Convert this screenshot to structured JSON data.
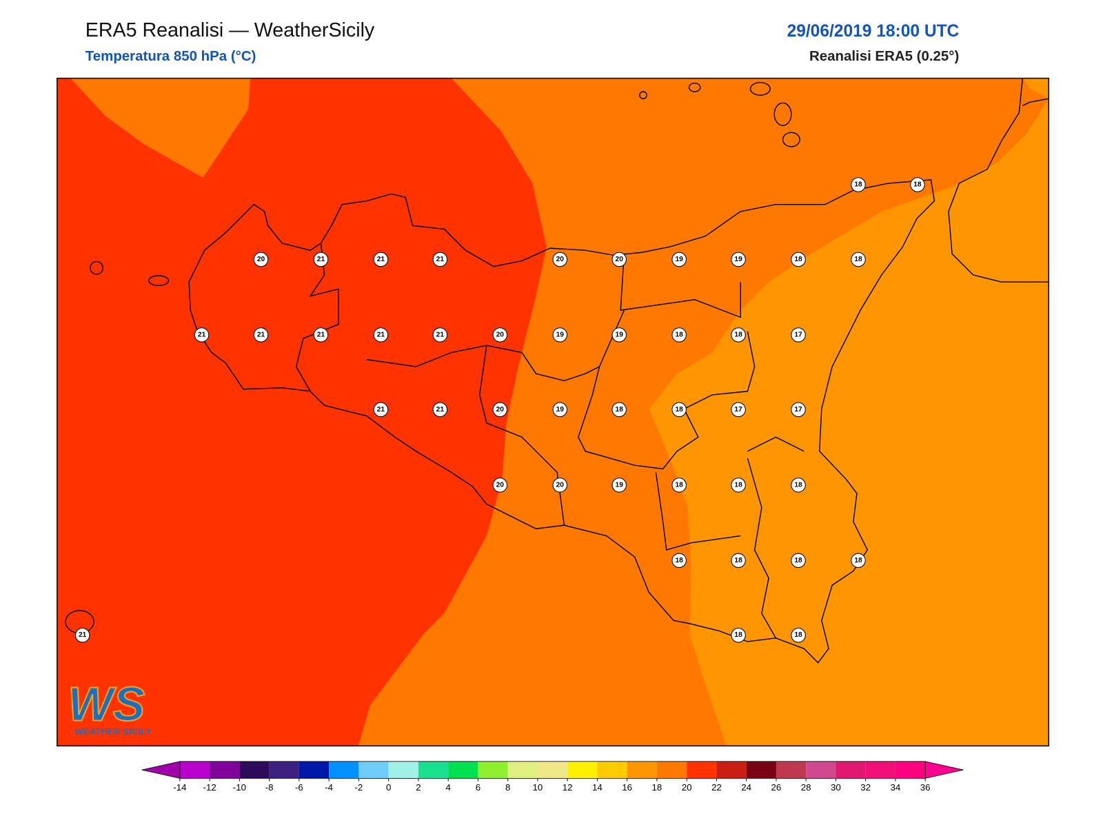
{
  "header": {
    "title": "ERA5 Reanalisi — WeatherSicily",
    "subtitle": "Temperatura 850 hPa (°C)",
    "datetime": "29/06/2019 18:00 UTC",
    "source": "Reanalisi ERA5 (0.25°)"
  },
  "stations": [
    18,
    18,
    20,
    21,
    21,
    21,
    20,
    20,
    19,
    19,
    18,
    18,
    21,
    21,
    21,
    21,
    21,
    20,
    19,
    19,
    18,
    18,
    17,
    21,
    21,
    20,
    19,
    18,
    18,
    17,
    17,
    20,
    20,
    19,
    18,
    18,
    18,
    18,
    18,
    18,
    18,
    21,
    18,
    18
  ],
  "colorbar": {
    "ticks": [
      -14,
      -12,
      -10,
      -8,
      -6,
      -4,
      -2,
      0,
      2,
      4,
      6,
      8,
      10,
      12,
      14,
      16,
      18,
      20,
      22,
      24,
      26,
      28,
      30,
      32,
      34,
      36
    ],
    "colors": [
      "#b800cc",
      "#80009c",
      "#2e0a5a",
      "#3c2080",
      "#0018a8",
      "#0090ff",
      "#70ccf8",
      "#a0f0e8",
      "#18e090",
      "#00e050",
      "#90f030",
      "#e0f080",
      "#f0e888",
      "#fff000",
      "#ffcc00",
      "#ff9500",
      "#ff7800",
      "#ff3300",
      "#c81e14",
      "#780010",
      "#c03850",
      "#d04890",
      "#e01870",
      "#f01078",
      "#ff0080"
    ],
    "under": "#a000a8",
    "over": "#ff0090"
  },
  "logo": {
    "mark": "WS",
    "text": "WEATHER SICILY"
  }
}
